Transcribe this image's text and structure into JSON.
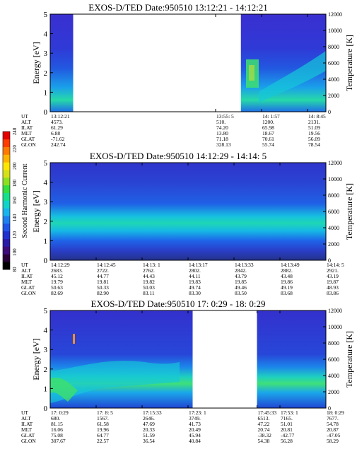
{
  "figure": {
    "colorbar": {
      "label": "Second Harmonic Current",
      "ticks": [
        "80",
        "100",
        "120",
        "140",
        "160",
        "180",
        "200",
        "220",
        "240"
      ],
      "colors": [
        "#000000",
        "#2a0038",
        "#3d0a7a",
        "#2a1aa8",
        "#1f2fd0",
        "#1e55e8",
        "#1e80f0",
        "#18b4ee",
        "#10d4c8",
        "#14e08c",
        "#32e040",
        "#8ce020",
        "#d6e018",
        "#ffe600",
        "#ffb400",
        "#ff7a00",
        "#ff3c00",
        "#e60000"
      ]
    },
    "colors": {
      "background_band": "#2a2fc8",
      "mid_band": "#1e6ee8",
      "core_band": "#12c8d8",
      "hot_band": "#3ee06a"
    }
  },
  "chart_data": [
    {
      "type": "heatmap",
      "title": "EXOS-D/TED   Date:950510  13:12:21 - 14:12:21",
      "ylabel": "Energy [eV]",
      "y2label": "Temperature [K]",
      "ylim": [
        0,
        5
      ],
      "y_ticks": [
        "0",
        "1",
        "2",
        "3",
        "4",
        "5"
      ],
      "y2lim": [
        0,
        12000
      ],
      "y2_ticks": [
        "0",
        "2000",
        "4000",
        "6000",
        "8000",
        "10000",
        "12000"
      ],
      "x_ticks": [
        0,
        3.6,
        4.6,
        5.6
      ],
      "data_segments": [
        [
          0,
          0.5
        ],
        [
          4.15,
          6
        ]
      ],
      "data_cols": 6,
      "row_labels": [
        "UT",
        "ALT",
        "ILAT",
        "MLT",
        "GLAT",
        "GLON"
      ],
      "table": [
        [
          "13:12:21",
          "4573.",
          "61.29",
          "6.88",
          "-71.62",
          "242.74"
        ],
        [
          "13:55: 5",
          "510.",
          "74.20",
          "13.80",
          "71.18",
          "328.13"
        ],
        [
          "14: 1:57",
          "1200.",
          "65.98",
          "18.67",
          "70.61",
          "55.74"
        ],
        [
          "14: 8:45",
          "2131.",
          "51.09",
          "19.56",
          "56.09",
          "78.54"
        ]
      ],
      "table_cols": [
        0,
        3.6,
        4.6,
        5.6
      ]
    },
    {
      "type": "heatmap",
      "title": "EXOS-D/TED   Date:950510  14:12:29 - 14:14: 5",
      "ylabel": "Energy [eV]",
      "y2label": "Temperature [K]",
      "ylim": [
        0,
        5
      ],
      "y_ticks": [
        "0",
        "1",
        "2",
        "3",
        "4",
        "5"
      ],
      "y2lim": [
        0,
        12000
      ],
      "y2_ticks": [
        "0",
        "2000",
        "4000",
        "6000",
        "8000",
        "10000",
        "12000"
      ],
      "x_ticks": [
        0,
        1,
        2,
        3,
        4,
        5,
        6
      ],
      "data_segments": [
        [
          0,
          6
        ]
      ],
      "data_cols": 6,
      "row_labels": [
        "UT",
        "ALT",
        "ILAT",
        "MLT",
        "GLAT",
        "GLON"
      ],
      "table": [
        [
          "14:12:29",
          "2683.",
          "45.12",
          "19.79",
          "50.63",
          "82.69"
        ],
        [
          "14:12:45",
          "2722.",
          "44.77",
          "19.81",
          "50.33",
          "82.90"
        ],
        [
          "14:13: 1",
          "2762.",
          "44.43",
          "19.82",
          "50.03",
          "83.11"
        ],
        [
          "14:13:17",
          "2802.",
          "44.11",
          "19.83",
          "49.74",
          "83.30"
        ],
        [
          "14:13:33",
          "2842.",
          "43.79",
          "19.85",
          "49.46",
          "83.50"
        ],
        [
          "14:13:49",
          "2882.",
          "43.48",
          "19.86",
          "49.19",
          "83.68"
        ],
        [
          "14:14: 5",
          "2921.",
          "43.19",
          "19.87",
          "48.93",
          "83.86"
        ]
      ],
      "table_cols": [
        0,
        1,
        2,
        3,
        4,
        5,
        6
      ]
    },
    {
      "type": "heatmap",
      "title": "EXOS-D/TED   Date:950510  17: 0:29 - 18: 0:29",
      "ylabel": "Energy [eV]",
      "y2label": "Temperature [K]",
      "ylim": [
        0,
        5
      ],
      "y_ticks": [
        "0",
        "1",
        "2",
        "3",
        "4",
        "5"
      ],
      "y2lim": [
        0,
        12000
      ],
      "y2_ticks": [
        "0",
        "2000",
        "4000",
        "6000",
        "8000",
        "10000",
        "12000"
      ],
      "x_ticks": [
        0,
        1,
        2,
        3,
        4.5,
        5,
        6
      ],
      "data_segments": [
        [
          0,
          3.1
        ],
        [
          4.5,
          6
        ]
      ],
      "data_cols": 6,
      "row_labels": [
        "UT",
        "ALT",
        "ILAT",
        "MLT",
        "GLAT",
        "GLON"
      ],
      "table": [
        [
          "17: 0:29",
          "680.",
          "81.15",
          "16.06",
          "75.08",
          "307.67"
        ],
        [
          "17: 8: 5",
          "1567.",
          "61.58",
          "19.96",
          "64.77",
          "22.57"
        ],
        [
          "17:15:33",
          "2646.",
          "47.69",
          "20.33",
          "51.59",
          "36.54"
        ],
        [
          "17:23: 1",
          "3749.",
          "41.73",
          "20.49",
          "45.94",
          "40.84"
        ],
        [
          "17:45:33",
          "6513.",
          "47.22",
          "20.74",
          "-38.32",
          "54.38"
        ],
        [
          "17:53: 1",
          "7165.",
          "51.01",
          "20.81",
          "-42.77",
          "56.28"
        ],
        [
          "18: 0:29",
          "7677.",
          "54.78",
          "20.87",
          "-47.05",
          "58.29"
        ]
      ],
      "table_cols": [
        0,
        1,
        2,
        3,
        4.5,
        5,
        6
      ]
    }
  ]
}
